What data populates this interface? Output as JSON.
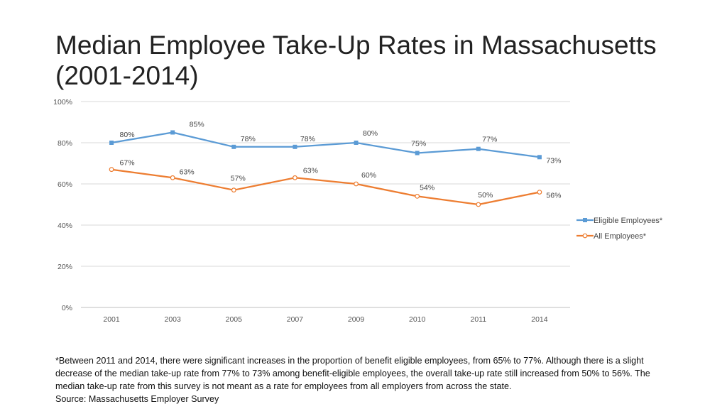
{
  "title": "Median Employee Take-Up Rates in Massachusetts (2001-2014)",
  "chart_data": {
    "type": "line",
    "categories": [
      "2001",
      "2003",
      "2005",
      "2007",
      "2009",
      "2010",
      "2011",
      "2014"
    ],
    "ylim": [
      0,
      100
    ],
    "yticks": [
      0,
      20,
      40,
      60,
      80,
      100
    ],
    "ytick_labels": [
      "0%",
      "20%",
      "40%",
      "60%",
      "80%",
      "100%"
    ],
    "grid": true,
    "legend_position": "right",
    "series": [
      {
        "name": "Eligible Employees*",
        "color": "#5B9BD5",
        "marker": "square",
        "values": [
          80,
          85,
          78,
          78,
          80,
          75,
          77,
          73
        ],
        "labels": [
          "80%",
          "85%",
          "78%",
          "78%",
          "80%",
          "75%",
          "77%",
          "73%"
        ]
      },
      {
        "name": "All Employees*",
        "color": "#ED7D31",
        "marker": "circle",
        "values": [
          67,
          63,
          57,
          63,
          60,
          54,
          50,
          56
        ],
        "labels": [
          "67%",
          "63%",
          "57%",
          "63%",
          "60%",
          "54%",
          "50%",
          "56%"
        ]
      }
    ]
  },
  "footnote": {
    "text": "*Between 2011 and 2014, there were significant increases in the proportion of benefit eligible employees, from 65% to 77%. Although there is a slight decrease of the median take-up rate from 77% to 73% among benefit-eligible employees, the overall take-up rate still increased from 50% to 56%.  The median take-up rate from this survey is not meant as a rate for employees from all employers from across the state.",
    "source": "Source: Massachusetts Employer Survey"
  }
}
